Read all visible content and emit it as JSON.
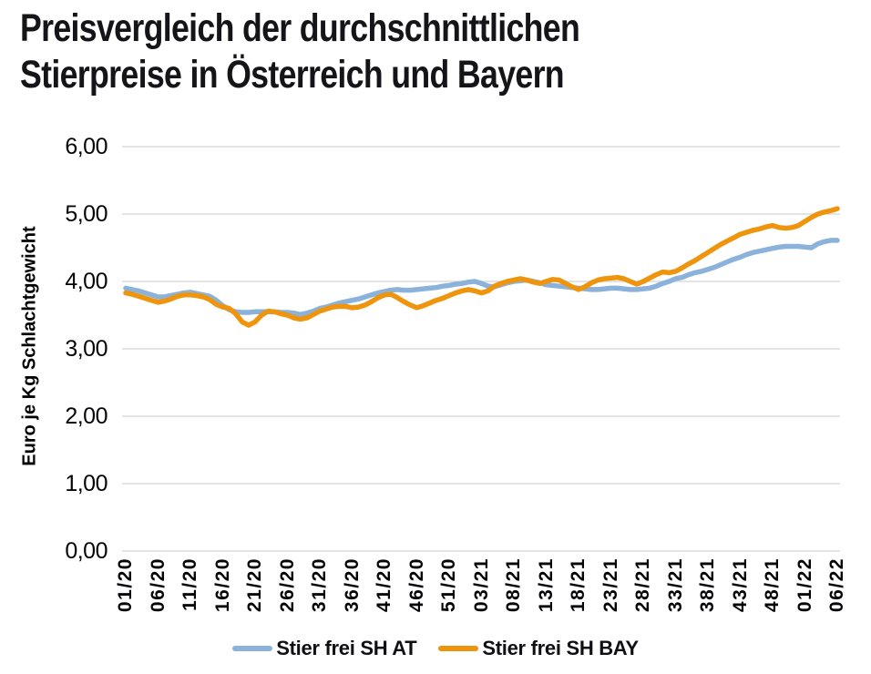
{
  "page": {
    "background": "#ffffff"
  },
  "title": {
    "line1": "Preisvergleich der durchschnittlichen",
    "line2": "Stierpreise in Österreich und Bayern"
  },
  "chart_data": {
    "type": "line",
    "title": "Preisvergleich der durchschnittlichen Stierpreise in Österreich und Bayern",
    "xlabel": "",
    "ylabel": "Euro je Kg Schlachtgewicht",
    "ylim": [
      0,
      6
    ],
    "grid": "horizontal",
    "legend_position": "bottom",
    "y_tick_labels": [
      "0,00",
      "1,00",
      "2,00",
      "3,00",
      "4,00",
      "5,00",
      "6,00"
    ],
    "x_tick_labels": [
      "01/20",
      "06/20",
      "11/20",
      "16/20",
      "21/20",
      "26/20",
      "31/20",
      "36/20",
      "41/20",
      "46/20",
      "51/20",
      "03/21",
      "08/21",
      "13/21",
      "18/21",
      "23/21",
      "28/21",
      "33/21",
      "38/21",
      "43/21",
      "48/21",
      "01/22",
      "06/22"
    ],
    "x_tick_every": 5,
    "n_points": 111,
    "colors": {
      "gridline": "#DBDBDB",
      "text": "#050507"
    },
    "series": [
      {
        "name": "Stier frei SH AT",
        "color": "#8BB2DA",
        "values": [
          3.9,
          3.88,
          3.86,
          3.83,
          3.8,
          3.77,
          3.77,
          3.79,
          3.81,
          3.83,
          3.84,
          3.82,
          3.8,
          3.78,
          3.72,
          3.64,
          3.58,
          3.55,
          3.54,
          3.54,
          3.55,
          3.55,
          3.55,
          3.55,
          3.54,
          3.54,
          3.53,
          3.51,
          3.53,
          3.56,
          3.6,
          3.62,
          3.65,
          3.68,
          3.7,
          3.72,
          3.74,
          3.77,
          3.8,
          3.83,
          3.85,
          3.87,
          3.88,
          3.87,
          3.87,
          3.88,
          3.89,
          3.9,
          3.91,
          3.93,
          3.94,
          3.96,
          3.97,
          3.99,
          4.0,
          3.97,
          3.93,
          3.92,
          3.95,
          3.98,
          4.0,
          4.01,
          4.02,
          4.0,
          3.98,
          3.95,
          3.94,
          3.93,
          3.92,
          3.91,
          3.9,
          3.89,
          3.88,
          3.88,
          3.89,
          3.9,
          3.9,
          3.89,
          3.88,
          3.88,
          3.89,
          3.9,
          3.93,
          3.97,
          4.0,
          4.04,
          4.06,
          4.1,
          4.13,
          4.15,
          4.18,
          4.21,
          4.25,
          4.29,
          4.33,
          4.36,
          4.4,
          4.43,
          4.45,
          4.47,
          4.49,
          4.51,
          4.52,
          4.52,
          4.52,
          4.51,
          4.5,
          4.56,
          4.59,
          4.61,
          4.61
        ]
      },
      {
        "name": "Stier frei SH BAY",
        "color": "#EF940D",
        "values": [
          3.83,
          3.81,
          3.78,
          3.75,
          3.72,
          3.69,
          3.71,
          3.74,
          3.78,
          3.8,
          3.8,
          3.79,
          3.77,
          3.73,
          3.66,
          3.62,
          3.6,
          3.52,
          3.4,
          3.35,
          3.4,
          3.5,
          3.56,
          3.55,
          3.52,
          3.5,
          3.46,
          3.44,
          3.46,
          3.51,
          3.56,
          3.59,
          3.62,
          3.63,
          3.63,
          3.61,
          3.62,
          3.65,
          3.7,
          3.76,
          3.8,
          3.81,
          3.76,
          3.7,
          3.65,
          3.61,
          3.64,
          3.68,
          3.72,
          3.75,
          3.79,
          3.83,
          3.86,
          3.88,
          3.86,
          3.83,
          3.86,
          3.93,
          3.97,
          4.0,
          4.02,
          4.04,
          4.02,
          3.99,
          3.97,
          4.0,
          4.03,
          4.02,
          3.97,
          3.92,
          3.88,
          3.92,
          3.98,
          4.02,
          4.04,
          4.05,
          4.06,
          4.04,
          4.0,
          3.96,
          4.0,
          4.05,
          4.1,
          4.14,
          4.13,
          4.15,
          4.2,
          4.26,
          4.31,
          4.37,
          4.43,
          4.49,
          4.55,
          4.6,
          4.65,
          4.7,
          4.73,
          4.76,
          4.78,
          4.81,
          4.83,
          4.8,
          4.79,
          4.8,
          4.83,
          4.89,
          4.95,
          5.0,
          5.03,
          5.05,
          5.08
        ]
      }
    ]
  }
}
